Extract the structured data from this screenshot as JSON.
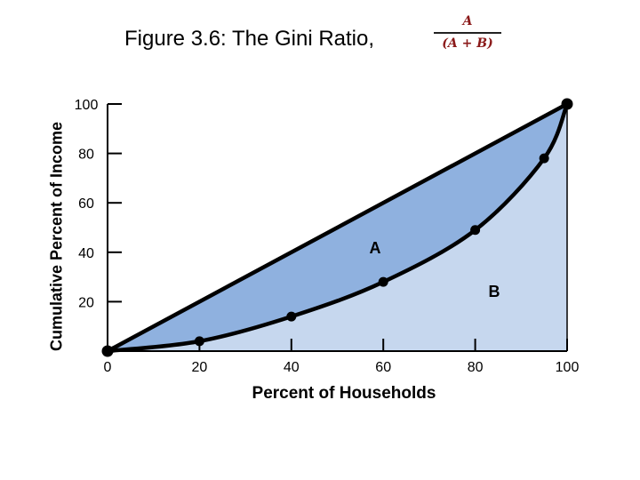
{
  "chart_data": {
    "type": "area",
    "title": "Figure 3.6: The Gini Ratio,",
    "formula": {
      "numerator": "A",
      "denominator": "(A + B)"
    },
    "xlabel": "Percent of Households",
    "ylabel": "Cumulative Percent of Income",
    "xlim": [
      0,
      100
    ],
    "ylim": [
      0,
      100
    ],
    "x_ticks": [
      "0",
      "20",
      "40",
      "60",
      "80",
      "100"
    ],
    "y_ticks": [
      "20",
      "40",
      "60",
      "80",
      "100"
    ],
    "series": [
      {
        "name": "",
        "x": [
          0,
          100
        ],
        "y": [
          0,
          100
        ]
      },
      {
        "name": "",
        "x": [
          0,
          20,
          40,
          60,
          80,
          95,
          100
        ],
        "y": [
          0,
          4,
          14,
          28,
          49,
          78,
          100
        ]
      }
    ],
    "region_labels": [
      "A",
      "B"
    ],
    "colors": {
      "area_a": "#8fb1df",
      "area_b": "#c6d7ee",
      "line": "#000000"
    }
  }
}
